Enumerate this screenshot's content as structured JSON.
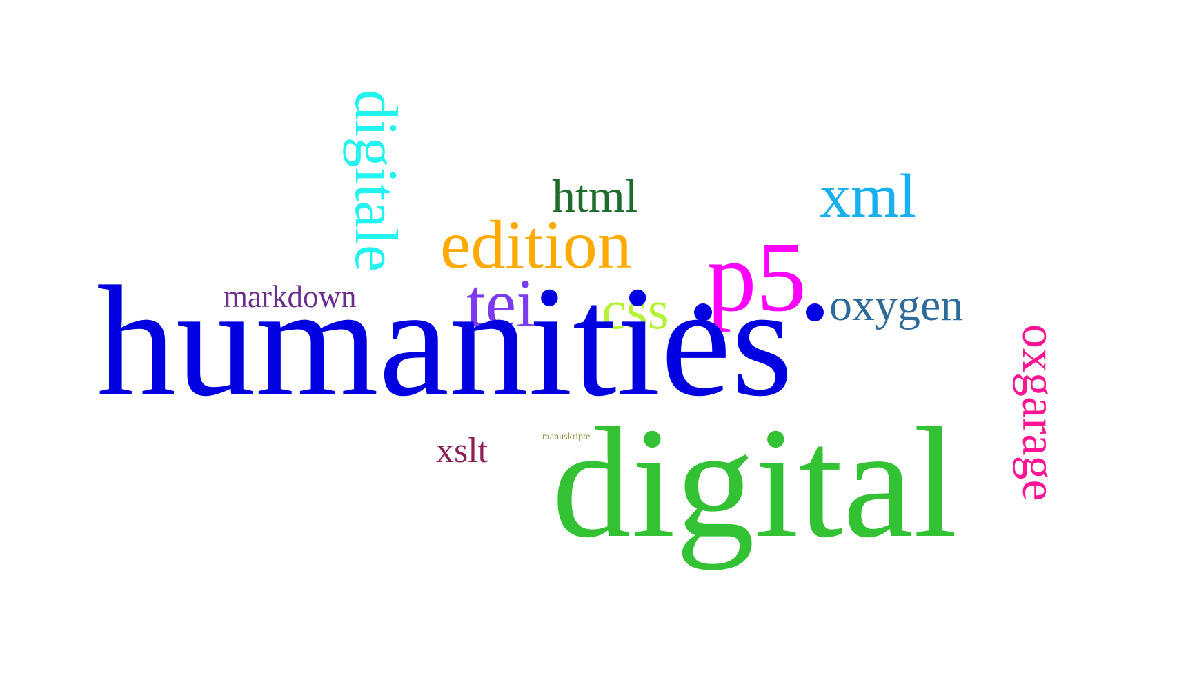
{
  "words": {
    "humanities": {
      "text": "humanities",
      "color": "#0000E0"
    },
    "digital": {
      "text": "digital",
      "color": "#33C233"
    },
    "digitale": {
      "text": "digitale",
      "color": "#22F2F0"
    },
    "edition": {
      "text": "edition",
      "color": "#FFAA00"
    },
    "p5": {
      "text": "p5",
      "color": "#FF00FF"
    },
    "tei": {
      "text": "tei",
      "color": "#7B3BEF"
    },
    "css": {
      "text": "css",
      "color": "#B5F23A"
    },
    "xml": {
      "text": "xml",
      "color": "#19B0EF"
    },
    "html": {
      "text": "html",
      "color": "#1E6B2C"
    },
    "oxygen": {
      "text": "oxygen",
      "color": "#2E6A9A"
    },
    "oxgarage": {
      "text": "oxgarage",
      "color": "#FF1493"
    },
    "markdown": {
      "text": "markdown",
      "color": "#6A2D8F"
    },
    "xslt": {
      "text": "xslt",
      "color": "#8E1F55"
    },
    "manuskripte": {
      "text": "manuskripte",
      "color": "#8A8A3A"
    }
  },
  "dots": {
    "dot_1": {
      "color": "#0000E0"
    },
    "dot_2": {
      "color": "#0000E0"
    }
  }
}
